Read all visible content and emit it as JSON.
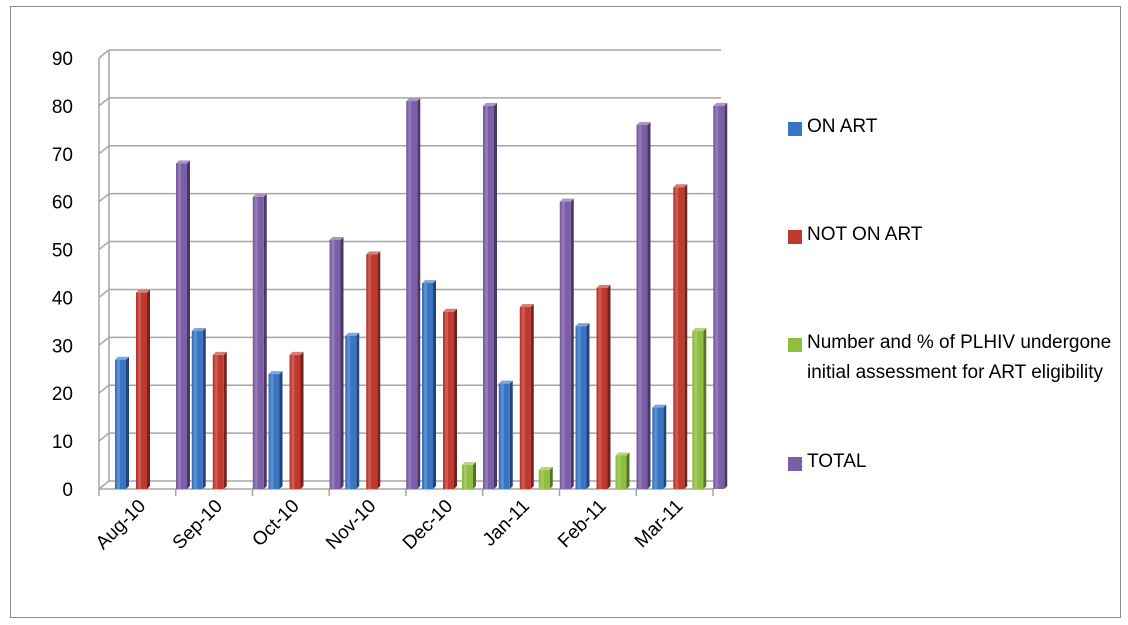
{
  "chart_data": {
    "type": "bar",
    "categories": [
      "Aug-10",
      "Sep-10",
      "Oct-10",
      "Nov-10",
      "Dec-10",
      "Jan-11",
      "Feb-11",
      "Mar-11"
    ],
    "series": [
      {
        "name": "ON ART",
        "color": "#3a75c4",
        "values": [
          27,
          33,
          24,
          32,
          43,
          22,
          34,
          17
        ]
      },
      {
        "name": "NOT ON ART",
        "color": "#c0392f",
        "values": [
          41,
          28,
          28,
          49,
          37,
          38,
          42,
          63
        ]
      },
      {
        "name": "Number and % of PLHIV undergone initial assessment for ART eligibility",
        "color": "#8fbf3f",
        "values": [
          0,
          0,
          0,
          0,
          5,
          4,
          7,
          33
        ]
      },
      {
        "name": "TOTAL",
        "color": "#7b5ea7",
        "values": [
          68,
          61,
          52,
          81,
          80,
          60,
          76,
          80
        ]
      }
    ],
    "yticks": [
      "0",
      "10",
      "20",
      "30",
      "40",
      "50",
      "60",
      "70",
      "80",
      "90"
    ],
    "ylim": [
      0,
      90
    ],
    "grid": true,
    "legend_position": "right"
  }
}
